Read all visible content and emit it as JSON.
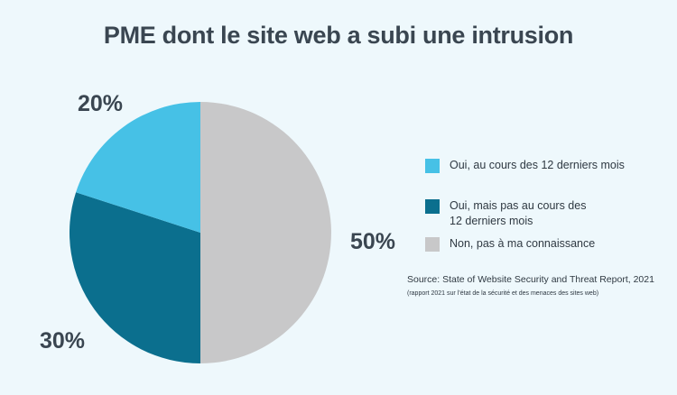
{
  "chart_data": {
    "type": "pie",
    "title": "PME dont le site web a subi une intrusion",
    "slices": [
      {
        "label": "Non, pas à ma connaissance",
        "value": 50,
        "value_label": "50%",
        "color": "#c8c8c9"
      },
      {
        "label": "Oui, mais pas au cours des 12 derniers mois",
        "value": 30,
        "value_label": "30%",
        "color": "#0b6f8e"
      },
      {
        "label": "Oui, au cours des 12 derniers mois",
        "value": 20,
        "value_label": "20%",
        "color": "#46c1e6"
      }
    ],
    "legend": [
      {
        "label": "Oui, au cours des 12 derniers mois",
        "color": "#46c1e6"
      },
      {
        "label": "Oui, mais pas au cours des 12 derniers mois",
        "color": "#0b6f8e"
      },
      {
        "label": "Non, pas à ma connaissance",
        "color": "#c8c8c9"
      }
    ],
    "legend_position": "right",
    "source": "Source: State of Website Security and Threat Report, 2021",
    "source_note": "(rapport 2021 sur l’état de la sécurité et des menaces des sites web)"
  }
}
